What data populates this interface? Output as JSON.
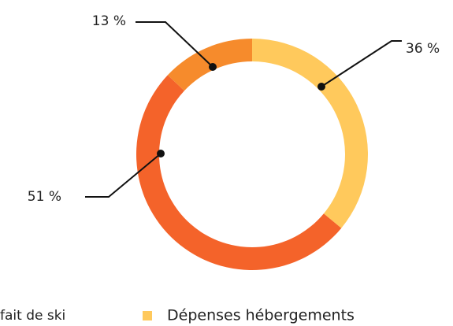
{
  "chart_data": {
    "type": "donut",
    "categories": [
      "Dépenses hébergements",
      "fait de ski",
      null
    ],
    "values": [
      36,
      51,
      13
    ],
    "value_labels": [
      "36 %",
      "51 %",
      "13 %"
    ],
    "colors": [
      "#ffc95c",
      "#f4632a",
      "#f68b2c"
    ]
  }
}
